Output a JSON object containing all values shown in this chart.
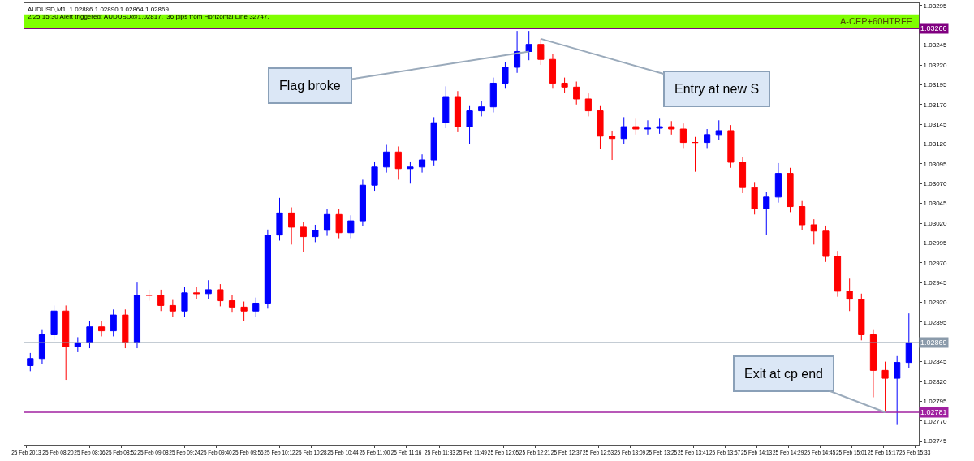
{
  "chart_data": {
    "type": "candlestick",
    "title": "AUDUSD,M1  1.02886 1.02890 1.02864 1.02869",
    "subtitle": "2/25 15:30 Alert triggered: AUDUSD@1.02817.  36 pips from Horizontal Line 32747.",
    "annotations": [
      {
        "text": "Flag broke",
        "x": "2013-02-25T12:18",
        "y": 1.03237
      },
      {
        "text": "Entry at new S",
        "x": "2013-02-25T12:24",
        "y": 1.03253
      },
      {
        "text": "Exit at cp end",
        "x": "2013-02-25T15:18",
        "y": 1.02781
      }
    ],
    "x": [
      "2013-02-25T08:06",
      "2013-02-25T08:12",
      "2013-02-25T08:18",
      "2013-02-25T08:24",
      "2013-02-25T08:30",
      "2013-02-25T08:36",
      "2013-02-25T08:42",
      "2013-02-25T08:48",
      "2013-02-25T08:54",
      "2013-02-25T09:00",
      "2013-02-25T09:06",
      "2013-02-25T09:12",
      "2013-02-25T09:18",
      "2013-02-25T09:24",
      "2013-02-25T09:30",
      "2013-02-25T09:36",
      "2013-02-25T09:42",
      "2013-02-25T09:48",
      "2013-02-25T09:54",
      "2013-02-25T10:00",
      "2013-02-25T10:06",
      "2013-02-25T10:12",
      "2013-02-25T10:18",
      "2013-02-25T10:24",
      "2013-02-25T10:30",
      "2013-02-25T10:36",
      "2013-02-25T10:42",
      "2013-02-25T10:48",
      "2013-02-25T10:54",
      "2013-02-25T11:00",
      "2013-02-25T11:06",
      "2013-02-25T11:12",
      "2013-02-25T11:18",
      "2013-02-25T11:24",
      "2013-02-25T11:30",
      "2013-02-25T11:36",
      "2013-02-25T11:42",
      "2013-02-25T11:48",
      "2013-02-25T11:54",
      "2013-02-25T12:00",
      "2013-02-25T12:06",
      "2013-02-25T12:12",
      "2013-02-25T12:18",
      "2013-02-25T12:24",
      "2013-02-25T12:30",
      "2013-02-25T12:36",
      "2013-02-25T12:42",
      "2013-02-25T12:48",
      "2013-02-25T12:54",
      "2013-02-25T13:00",
      "2013-02-25T13:06",
      "2013-02-25T13:12",
      "2013-02-25T13:18",
      "2013-02-25T13:24",
      "2013-02-25T13:30",
      "2013-02-25T13:36",
      "2013-02-25T13:42",
      "2013-02-25T13:48",
      "2013-02-25T13:54",
      "2013-02-25T14:00",
      "2013-02-25T14:06",
      "2013-02-25T14:12",
      "2013-02-25T14:18",
      "2013-02-25T14:24",
      "2013-02-25T14:30",
      "2013-02-25T14:36",
      "2013-02-25T14:42",
      "2013-02-25T14:48",
      "2013-02-25T14:54",
      "2013-02-25T15:00",
      "2013-02-25T15:06",
      "2013-02-25T15:12",
      "2013-02-25T15:18",
      "2013-02-25T15:24",
      "2013-02-25T15:30"
    ],
    "ohlc": [
      [
        1.0284,
        1.02856,
        1.02833,
        1.02849
      ],
      [
        1.02849,
        1.02886,
        1.02842,
        1.02879
      ],
      [
        1.02879,
        1.02916,
        1.02872,
        1.02909
      ],
      [
        1.02909,
        1.02916,
        1.02822,
        1.02864
      ],
      [
        1.02864,
        1.02876,
        1.02857,
        1.02869
      ],
      [
        1.02869,
        1.02896,
        1.02862,
        1.02889
      ],
      [
        1.02889,
        1.02896,
        1.02877,
        1.02884
      ],
      [
        1.02884,
        1.02911,
        1.02877,
        1.02904
      ],
      [
        1.02904,
        1.02911,
        1.02862,
        1.02869
      ],
      [
        1.02869,
        1.02945,
        1.02862,
        1.02929
      ],
      [
        1.02929,
        1.02936,
        1.02922,
        1.02929
      ],
      [
        1.02929,
        1.02936,
        1.02909,
        1.02916
      ],
      [
        1.02916,
        1.02923,
        1.02902,
        1.02909
      ],
      [
        1.02909,
        1.02939,
        1.02902,
        1.02932
      ],
      [
        1.02932,
        1.02939,
        1.02924,
        1.02931
      ],
      [
        1.02931,
        1.02948,
        1.02924,
        1.02936
      ],
      [
        1.02936,
        1.02943,
        1.02915,
        1.02922
      ],
      [
        1.02922,
        1.02929,
        1.02907,
        1.02914
      ],
      [
        1.02914,
        1.02921,
        1.02896,
        1.02909
      ],
      [
        1.02909,
        1.02926,
        1.02902,
        1.02919
      ],
      [
        1.02919,
        1.03012,
        1.02912,
        1.03005
      ],
      [
        1.03005,
        1.03052,
        1.02998,
        1.03033
      ],
      [
        1.03033,
        1.0304,
        1.02993,
        1.03015
      ],
      [
        1.03015,
        1.03022,
        1.02984,
        1.03003
      ],
      [
        1.03003,
        1.03018,
        1.02996,
        1.03011
      ],
      [
        1.03011,
        1.03038,
        1.03004,
        1.03031
      ],
      [
        1.03031,
        1.03038,
        1.03001,
        1.03008
      ],
      [
        1.03008,
        1.0303,
        1.03001,
        1.03023
      ],
      [
        1.03023,
        1.03075,
        1.03016,
        1.03068
      ],
      [
        1.03068,
        1.03098,
        1.03061,
        1.03091
      ],
      [
        1.03091,
        1.03119,
        1.03084,
        1.0311
      ],
      [
        1.0311,
        1.03117,
        1.03075,
        1.03089
      ],
      [
        1.03089,
        1.03098,
        1.0307,
        1.03091
      ],
      [
        1.03091,
        1.03107,
        1.03084,
        1.031
      ],
      [
        1.031,
        1.03154,
        1.03093,
        1.03147
      ],
      [
        1.03147,
        1.03193,
        1.0314,
        1.0318
      ],
      [
        1.0318,
        1.03187,
        1.03135,
        1.03142
      ],
      [
        1.03142,
        1.03169,
        1.0312,
        1.03162
      ],
      [
        1.03162,
        1.03174,
        1.03155,
        1.03167
      ],
      [
        1.03167,
        1.03204,
        1.0316,
        1.03197
      ],
      [
        1.03197,
        1.03224,
        1.0319,
        1.03217
      ],
      [
        1.03217,
        1.03263,
        1.0321,
        1.03237
      ],
      [
        1.03237,
        1.03263,
        1.03226,
        1.03246
      ],
      [
        1.03246,
        1.03253,
        1.0322,
        1.03227
      ],
      [
        1.03227,
        1.03234,
        1.0319,
        1.03197
      ],
      [
        1.03197,
        1.03204,
        1.03185,
        1.03192
      ],
      [
        1.03192,
        1.03199,
        1.0317,
        1.03177
      ],
      [
        1.03177,
        1.03184,
        1.03155,
        1.03162
      ],
      [
        1.03162,
        1.03169,
        1.03114,
        1.0313
      ],
      [
        1.0313,
        1.03137,
        1.031,
        1.03127
      ],
      [
        1.03127,
        1.03154,
        1.0312,
        1.03142
      ],
      [
        1.03142,
        1.03152,
        1.03132,
        1.03139
      ],
      [
        1.03139,
        1.0315,
        1.03132,
        1.0314
      ],
      [
        1.0314,
        1.03152,
        1.03133,
        1.03142
      ],
      [
        1.03142,
        1.03149,
        1.03132,
        1.03139
      ],
      [
        1.03139,
        1.03146,
        1.03115,
        1.03122
      ],
      [
        1.03122,
        1.03129,
        1.03085,
        1.03122
      ],
      [
        1.03122,
        1.03139,
        1.03115,
        1.03132
      ],
      [
        1.03132,
        1.0315,
        1.03125,
        1.03137
      ],
      [
        1.03137,
        1.03144,
        1.0309,
        1.03097
      ],
      [
        1.03097,
        1.03104,
        1.03058,
        1.03065
      ],
      [
        1.03065,
        1.03072,
        1.03031,
        1.03038
      ],
      [
        1.03038,
        1.0306,
        1.03005,
        1.03053
      ],
      [
        1.03053,
        1.03096,
        1.03046,
        1.03083
      ],
      [
        1.03083,
        1.0309,
        1.03034,
        1.03041
      ],
      [
        1.03041,
        1.03048,
        1.03011,
        1.03018
      ],
      [
        1.03018,
        1.03025,
        1.02993,
        1.0301
      ],
      [
        1.0301,
        1.03017,
        1.02971,
        1.02978
      ],
      [
        1.02978,
        1.02985,
        1.02927,
        1.02934
      ],
      [
        1.02934,
        1.0295,
        1.02909,
        1.02924
      ],
      [
        1.02924,
        1.02931,
        1.02872,
        1.02879
      ],
      [
        1.02879,
        1.02886,
        1.028,
        1.02834
      ],
      [
        1.02834,
        1.02845,
        1.02781,
        1.02824
      ],
      [
        1.02824,
        1.02852,
        1.02765,
        1.02844
      ],
      [
        1.02844,
        1.02906,
        1.02837,
        1.02869
      ]
    ],
    "colors": [
      "#0000ff",
      "#0000ff",
      "#0000ff",
      "#ff0000",
      "#0000ff",
      "#0000ff",
      "#ff0000",
      "#0000ff",
      "#ff0000",
      "#0000ff",
      "#ff0000",
      "#ff0000",
      "#ff0000",
      "#0000ff",
      "#ff0000",
      "#0000ff",
      "#ff0000",
      "#ff0000",
      "#ff0000",
      "#0000ff",
      "#0000ff",
      "#0000ff",
      "#ff0000",
      "#ff0000",
      "#0000ff",
      "#0000ff",
      "#ff0000",
      "#0000ff",
      "#0000ff",
      "#0000ff",
      "#0000ff",
      "#ff0000",
      "#0000ff",
      "#0000ff",
      "#0000ff",
      "#0000ff",
      "#ff0000",
      "#0000ff",
      "#0000ff",
      "#0000ff",
      "#0000ff",
      "#0000ff",
      "#0000ff",
      "#ff0000",
      "#ff0000",
      "#ff0000",
      "#ff0000",
      "#ff0000",
      "#ff0000",
      "#ff0000",
      "#0000ff",
      "#ff0000",
      "#0000ff",
      "#0000ff",
      "#ff0000",
      "#ff0000",
      "#ff0000",
      "#0000ff",
      "#0000ff",
      "#ff0000",
      "#ff0000",
      "#ff0000",
      "#0000ff",
      "#0000ff",
      "#ff0000",
      "#ff0000",
      "#ff0000",
      "#ff0000",
      "#ff0000",
      "#ff0000",
      "#ff0000",
      "#ff0000",
      "#ff0000",
      "#0000ff",
      "#0000ff"
    ],
    "xlim": [
      "2013-02-25T08:03",
      "2013-02-25T15:35"
    ],
    "xticks": [
      {
        "value": "2013-02-25T08:04",
        "label": "25 Feb 2013"
      },
      {
        "value": "2013-02-25T08:20",
        "label": "25 Feb 08:20"
      },
      {
        "value": "2013-02-25T08:36",
        "label": "25 Feb 08:36"
      },
      {
        "value": "2013-02-25T08:52",
        "label": "25 Feb 08:52"
      },
      {
        "value": "2013-02-25T09:08",
        "label": "25 Feb 09:08"
      },
      {
        "value": "2013-02-25T09:24",
        "label": "25 Feb 09:24"
      },
      {
        "value": "2013-02-25T09:40",
        "label": "25 Feb 09:40"
      },
      {
        "value": "2013-02-25T09:56",
        "label": "25 Feb 09:56"
      },
      {
        "value": "2013-02-25T10:12",
        "label": "25 Feb 10:12"
      },
      {
        "value": "2013-02-25T10:28",
        "label": "25 Feb 10:28"
      },
      {
        "value": "2013-02-25T10:44",
        "label": "25 Feb 10:44"
      },
      {
        "value": "2013-02-25T11:00",
        "label": "25 Feb 11:00"
      },
      {
        "value": "2013-02-25T11:16",
        "label": "25 Feb 11:16"
      },
      {
        "value": "2013-02-25T11:33",
        "label": "25 Feb 11:33"
      },
      {
        "value": "2013-02-25T11:49",
        "label": "25 Feb 11:49"
      },
      {
        "value": "2013-02-25T12:05",
        "label": "25 Feb 12:05"
      },
      {
        "value": "2013-02-25T12:21",
        "label": "25 Feb 12:21"
      },
      {
        "value": "2013-02-25T12:37",
        "label": "25 Feb 12:37"
      },
      {
        "value": "2013-02-25T12:53",
        "label": "25 Feb 12:53"
      },
      {
        "value": "2013-02-25T13:09",
        "label": "25 Feb 13:09"
      },
      {
        "value": "2013-02-25T13:25",
        "label": "25 Feb 13:25"
      },
      {
        "value": "2013-02-25T13:41",
        "label": "25 Feb 13:41"
      },
      {
        "value": "2013-02-25T13:57",
        "label": "25 Feb 13:57"
      },
      {
        "value": "2013-02-25T14:13",
        "label": "25 Feb 14:13"
      },
      {
        "value": "2013-02-25T14:29",
        "label": "25 Feb 14:29"
      },
      {
        "value": "2013-02-25T14:45",
        "label": "25 Feb 14:45"
      },
      {
        "value": "2013-02-25T15:01",
        "label": "25 Feb 15:01"
      },
      {
        "value": "2013-02-25T15:17",
        "label": "25 Feb 15:17"
      },
      {
        "value": "2013-02-25T15:33",
        "label": "25 Feb 15:33"
      }
    ],
    "ylim": [
      1.0274,
      1.03298
    ],
    "yticks": [
      1.02745,
      {
        "value": 1.0277,
        "label": "1.02770"
      },
      1.02795,
      {
        "value": 1.0282,
        "label": "1.02820"
      },
      1.02845,
      1.02895,
      {
        "value": 1.0292,
        "label": "1.02920"
      },
      1.02945,
      {
        "value": 1.0297,
        "label": "1.02970"
      },
      1.02995,
      {
        "value": 1.0302,
        "label": "1.03020"
      },
      1.03045,
      {
        "value": 1.0307,
        "label": "1.03070"
      },
      1.03095,
      {
        "value": 1.0312,
        "label": "1.03120"
      },
      1.03145,
      {
        "value": 1.0317,
        "label": "1.03170"
      },
      1.03195,
      {
        "value": 1.0322,
        "label": "1.03220"
      },
      1.03245,
      1.03295
    ],
    "ref_lines": [
      {
        "axis": "y",
        "value": 1.03266,
        "label": "1.03266",
        "color": "#800080"
      },
      {
        "axis": "y",
        "value": 1.02869,
        "label": "1.02869",
        "color": "#8a9aaa"
      },
      {
        "axis": "y",
        "value": 1.02781,
        "label": "1.02781",
        "color": "#a020a0"
      }
    ],
    "bands": [
      {
        "axis": "y",
        "from": 1.03266,
        "to": 1.03284,
        "label": "A-CEP+60HTRFE",
        "color": "#80ff00"
      }
    ],
    "grid": false
  }
}
